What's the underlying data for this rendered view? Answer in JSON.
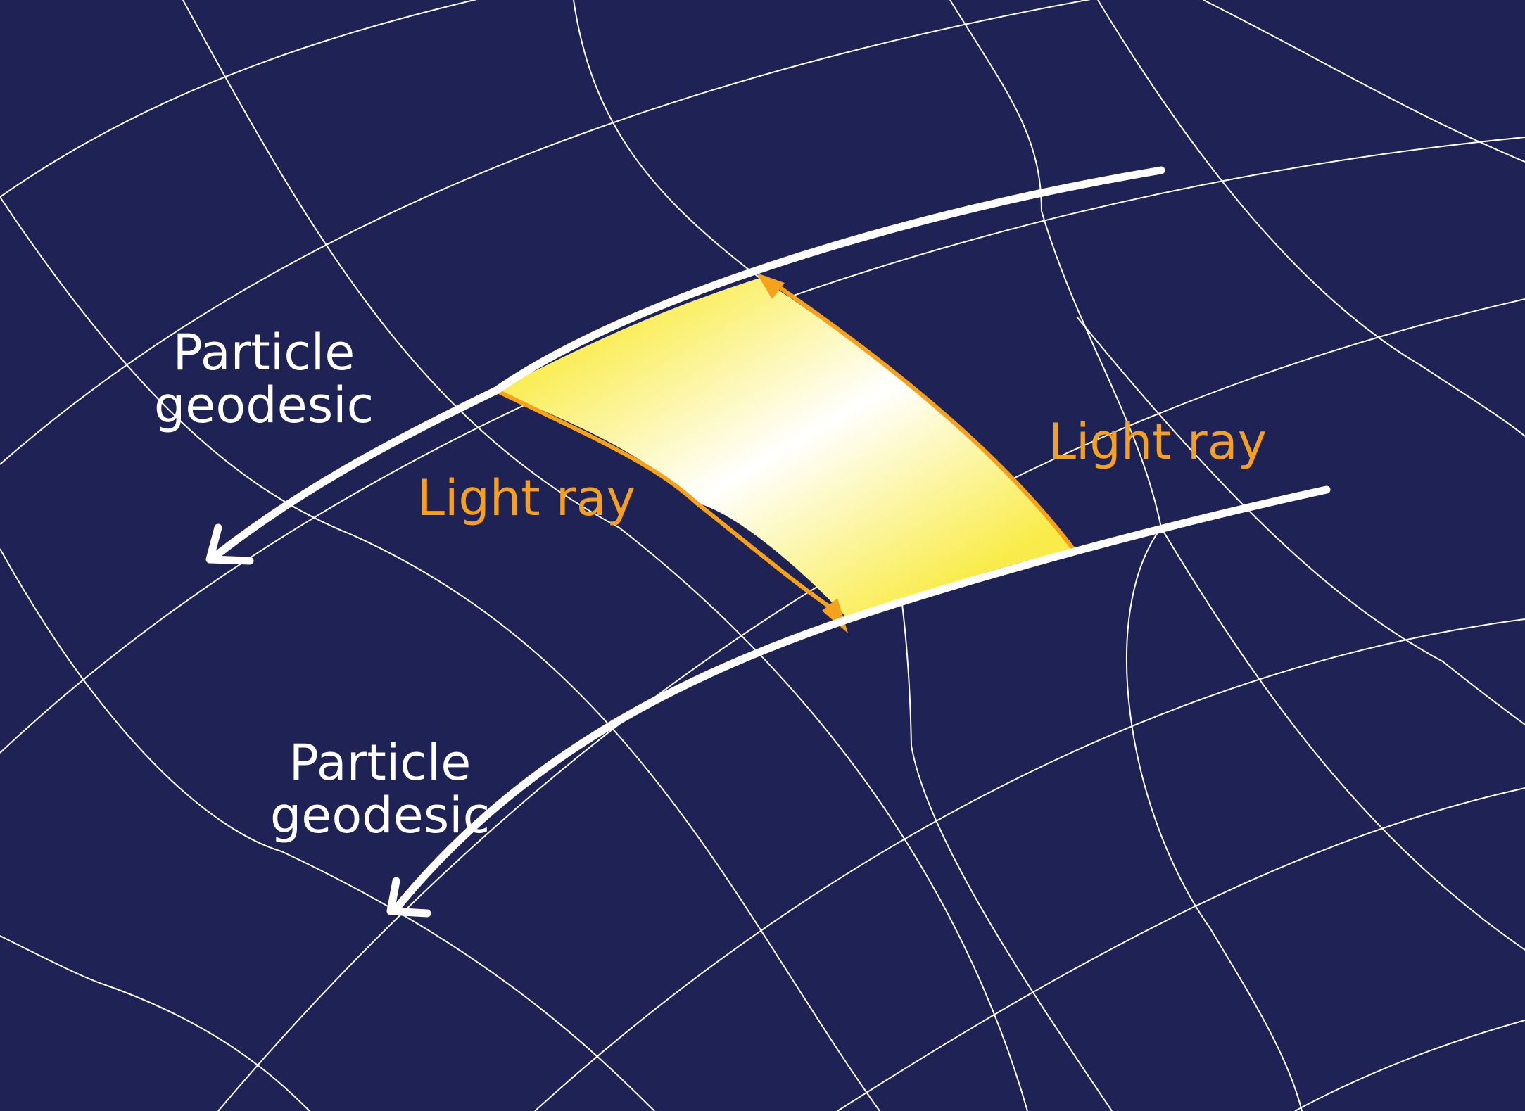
{
  "colors": {
    "background": "#1e2255",
    "grid": "#ffffff",
    "geodesic": "#ffffff",
    "light_ray": "#f5a11c",
    "band_yellow": "#f9ec4a",
    "band_white": "#ffffff"
  },
  "labels": {
    "particle_top": [
      "Particle",
      "geodesic"
    ],
    "particle_bottom": [
      "Particle",
      "geodesic"
    ],
    "light_ray_left": "Light ray",
    "light_ray_right": "Light ray"
  }
}
